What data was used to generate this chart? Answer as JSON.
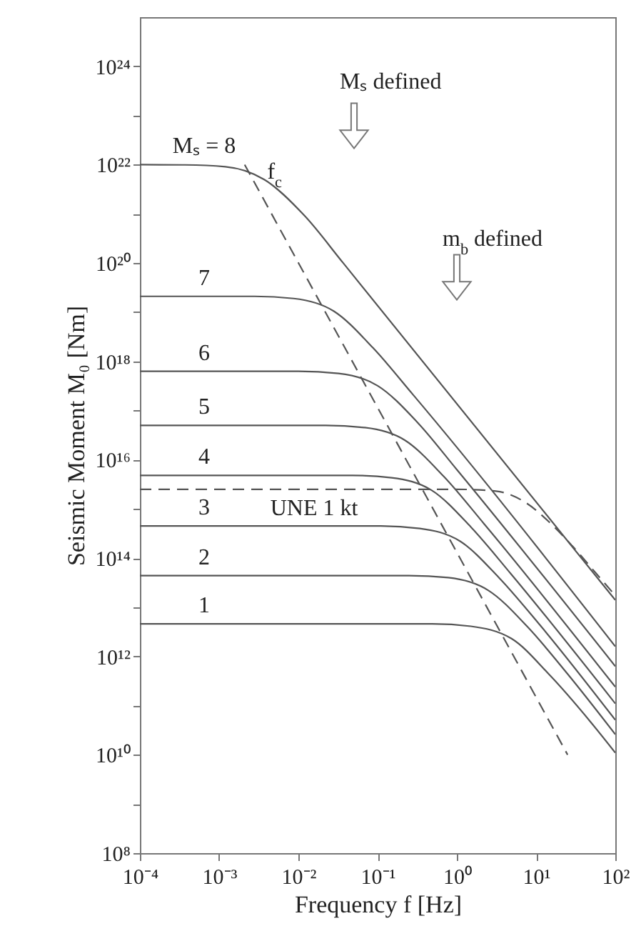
{
  "chart_data": {
    "type": "line",
    "xlabel": "Frequency f [Hz]",
    "ylabel": "Seismic Moment M₀ [Nm]",
    "log": "xy",
    "grid": false,
    "xlim": [
      0.0001,
      100
    ],
    "ylim": [
      100000000.0,
      1e+25
    ],
    "xticks": [
      {
        "value": 0.0001,
        "label": "10⁻⁴"
      },
      {
        "value": 0.001,
        "label": "10⁻³"
      },
      {
        "value": 0.01,
        "label": "10⁻²"
      },
      {
        "value": 0.1,
        "label": "10⁻¹"
      },
      {
        "value": 1,
        "label": "10⁰"
      },
      {
        "value": 10,
        "label": "10¹"
      },
      {
        "value": 100,
        "label": "10²"
      }
    ],
    "yticks": [
      {
        "value": 100000000.0,
        "label": "10⁸"
      },
      {
        "value": 1000000000.0,
        "label": null
      },
      {
        "value": 10000000000.0,
        "label": "10¹⁰"
      },
      {
        "value": 100000000000.0,
        "label": null
      },
      {
        "value": 1000000000000.0,
        "label": "10¹²"
      },
      {
        "value": 10000000000000.0,
        "label": null
      },
      {
        "value": 100000000000000.0,
        "label": "10¹⁴"
      },
      {
        "value": 1000000000000000.0,
        "label": null
      },
      {
        "value": 1e+16,
        "label": "10¹⁶"
      },
      {
        "value": 1e+17,
        "label": null
      },
      {
        "value": 1e+18,
        "label": "10¹⁸"
      },
      {
        "value": 1e+19,
        "label": null
      },
      {
        "value": 1e+20,
        "label": "10²⁰"
      },
      {
        "value": 1e+21,
        "label": null
      },
      {
        "value": 1e+22,
        "label": "10²²"
      },
      {
        "value": 1e+23,
        "label": null
      },
      {
        "value": 1e+24,
        "label": "10²⁴"
      }
    ],
    "series": [
      {
        "name": "Mₛ = 8",
        "color": "#555555",
        "line_style": "solid",
        "x": [
          0.0001,
          0.00037,
          0.0012,
          0.0037,
          0.012,
          0.037,
          100
        ],
        "values": [
          1e+22,
          9.9e+21,
          9.1e+21,
          5e+21,
          9.1e+20,
          9.9e+19,
          14000000000000.0
        ]
      },
      {
        "name": "7",
        "color": "#555555",
        "line_style": "solid",
        "x": [
          0.0001,
          0.0028,
          0.0087,
          0.028,
          0.087,
          0.28,
          100
        ],
        "values": [
          2.1e+19,
          2.1e+19,
          1.9e+19,
          1.05e+19,
          1.9e+18,
          2.1e+17,
          1600000000000.0
        ]
      },
      {
        "name": "6",
        "color": "#555555",
        "line_style": "solid",
        "x": [
          0.0001,
          0.01,
          0.032,
          0.1,
          0.32,
          1,
          100
        ],
        "values": [
          6.3e+17,
          6.3e+17,
          5.7e+17,
          3.2e+17,
          5.7e+16,
          6300000000000000.0,
          630000000000.0
        ]
      },
      {
        "name": "5",
        "color": "#555555",
        "line_style": "solid",
        "x": [
          0.0001,
          0.022,
          0.069,
          0.22,
          0.69,
          2.2,
          100
        ],
        "values": [
          5e+16,
          5e+16,
          4.5e+16,
          2.5e+16,
          4500000000000000.0,
          500000000000000.0,
          240000000000.0
        ]
      },
      {
        "name": "4",
        "color": "#555555",
        "line_style": "solid",
        "x": [
          0.0001,
          0.048,
          0.15,
          0.48,
          1.5,
          4.8,
          100
        ],
        "values": [
          4800000000000000.0,
          4800000000000000.0,
          4300000000000000.0,
          2400000000000000.0,
          430000000000000.0,
          48000000000000.0,
          110000000000.0
        ]
      },
      {
        "name": "3",
        "color": "#555555",
        "line_style": "solid",
        "x": [
          0.0001,
          0.11,
          0.34,
          1.1,
          3.4,
          11,
          100
        ],
        "values": [
          450000000000000.0,
          450000000000000.0,
          400000000000000.0,
          220000000000000.0,
          40000000000000.0,
          4500000000000.0,
          51000000000.0
        ]
      },
      {
        "name": "2",
        "color": "#555555",
        "line_style": "solid",
        "x": [
          0.0001,
          0.25,
          0.78,
          2.5,
          7.8,
          25,
          100
        ],
        "values": [
          44000000000000.0,
          44000000000000.0,
          40000000000000.0,
          22000000000000.0,
          4000000000000.0,
          440000000000.0,
          26000000000.0
        ]
      },
      {
        "name": "1",
        "color": "#555555",
        "line_style": "solid",
        "x": [
          0.0001,
          0.49,
          1.5,
          4.9,
          15,
          49,
          100
        ],
        "values": [
          4600000000000.0,
          4600000000000.0,
          4100000000000.0,
          2300000000000.0,
          410000000000.0,
          46000000000.0,
          11000000000.0
        ]
      },
      {
        "name": "UNE 1 kt",
        "color": "#555555",
        "line_style": "dashed",
        "x": [
          0.0001,
          1,
          3.1,
          7.1,
          15.8,
          27.5,
          56,
          95
        ],
        "values": [
          2500000000000000.0,
          2500000000000000.0,
          2300000000000000.0,
          1400000000000000.0,
          480000000000000.0,
          190000000000000.0,
          51000000000000.0,
          19000000000000.0
        ]
      },
      {
        "name": "f$_{c}$",
        "color": "#555555",
        "line_style": "dashed",
        "x": [
          0.0021,
          25
        ],
        "values": [
          1e+22,
          10000000000.0
        ]
      }
    ],
    "annotations": [
      "Mₛ defined",
      "m$_{b}$ defined"
    ]
  }
}
